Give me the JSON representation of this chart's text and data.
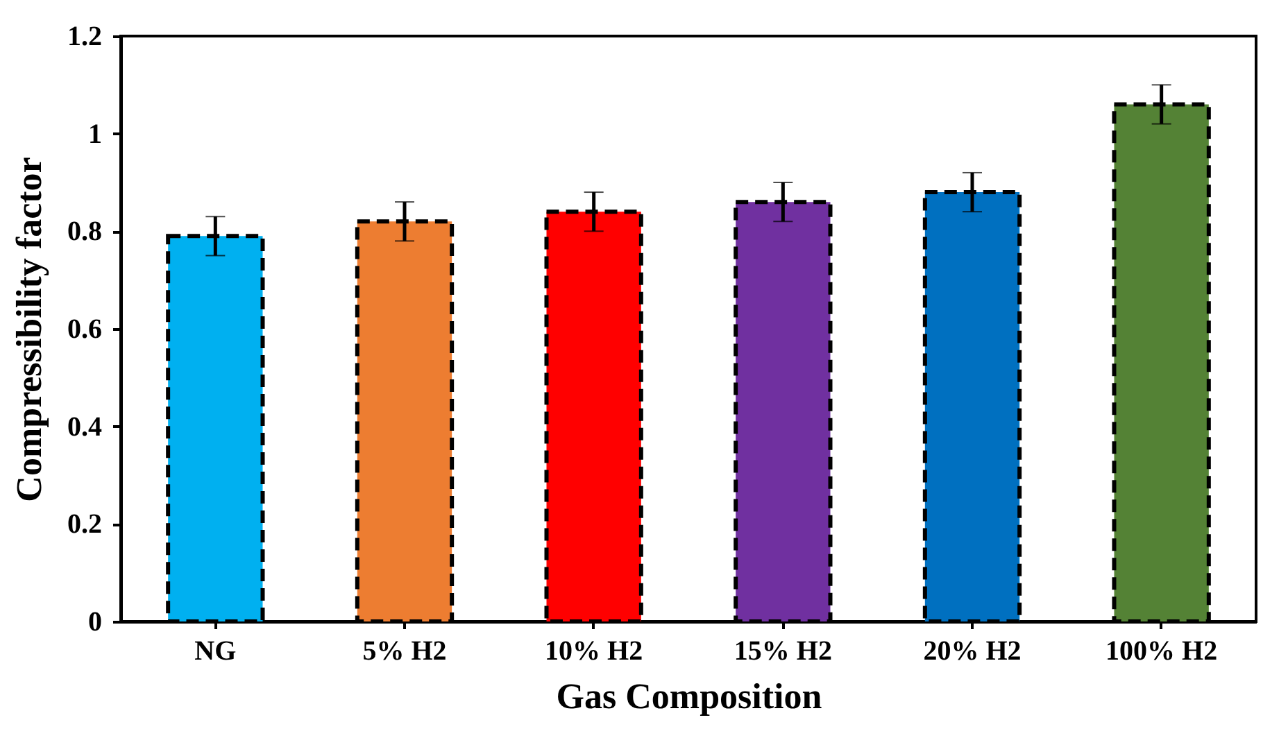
{
  "chart_data": {
    "type": "bar",
    "xlabel": "Gas Composition",
    "ylabel": "Compressibility factor",
    "categories": [
      "NG",
      "5% H2",
      "10% H2",
      "15% H2",
      "20% H2",
      "100% H2"
    ],
    "values": [
      0.79,
      0.82,
      0.84,
      0.86,
      0.88,
      1.06
    ],
    "colors": [
      "#00b0f0",
      "#ed7d31",
      "#ff0000",
      "#7030a0",
      "#0070c0",
      "#548235"
    ],
    "errors": [
      0.04,
      0.04,
      0.04,
      0.04,
      0.04,
      0.04
    ],
    "ylim": [
      0,
      1.2
    ],
    "yticks": [
      0,
      0.2,
      0.4,
      0.6,
      0.8,
      1,
      1.2
    ],
    "grid": false
  }
}
